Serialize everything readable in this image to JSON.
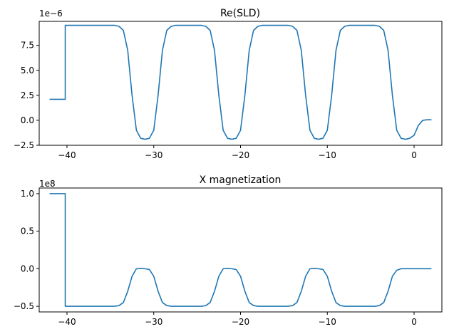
{
  "chart_data": [
    {
      "type": "line",
      "title": "Re(SLD)",
      "offset_text": "1e−6",
      "xlabel": "",
      "ylabel": "",
      "xlim": [
        -43.2,
        3.2
      ],
      "ylim": [
        -2.5,
        9.9
      ],
      "grid": false,
      "xticks": [
        -40,
        -30,
        -20,
        -10,
        0
      ],
      "xtick_labels": [
        "−40",
        "−30",
        "−20",
        "−10",
        "0"
      ],
      "yticks": [
        -2.5,
        0.0,
        2.5,
        5.0,
        7.5
      ],
      "ytick_labels": [
        "−2.5",
        "0.0",
        "2.5",
        "5.0",
        "7.5"
      ],
      "series": [
        {
          "color": "#1f77b4",
          "x": [
            -42,
            -40.2,
            -40.2,
            -34.5,
            -34,
            -33.5,
            -33,
            -32.5,
            -32,
            -31.5,
            -31,
            -30.5,
            -30,
            -29.5,
            -29,
            -28.5,
            -28,
            -27.5,
            -27,
            -24.5,
            -24,
            -23.5,
            -23,
            -22.5,
            -22,
            -21.5,
            -21,
            -20.5,
            -20,
            -19.5,
            -19,
            -18.5,
            -18,
            -17.5,
            -17,
            -14.5,
            -14,
            -13.5,
            -13,
            -12.5,
            -12,
            -11.5,
            -11,
            -10.5,
            -10,
            -9.5,
            -9,
            -8.5,
            -8,
            -7.5,
            -7,
            -4.5,
            -4,
            -3.5,
            -3,
            -2.5,
            -2,
            -1.5,
            -1,
            -0.5,
            0,
            0.5,
            1,
            1.5,
            2
          ],
          "y": [
            2.1,
            2.1,
            9.5,
            9.5,
            9.4,
            9.0,
            7.0,
            2.5,
            -1.0,
            -1.8,
            -1.9,
            -1.8,
            -1.0,
            2.5,
            7.0,
            9.0,
            9.4,
            9.5,
            9.5,
            9.5,
            9.4,
            9.0,
            7.0,
            2.5,
            -1.0,
            -1.8,
            -1.9,
            -1.8,
            -1.0,
            2.5,
            7.0,
            9.0,
            9.4,
            9.5,
            9.5,
            9.5,
            9.4,
            9.0,
            7.0,
            2.5,
            -1.0,
            -1.8,
            -1.9,
            -1.8,
            -1.0,
            2.5,
            7.0,
            9.0,
            9.4,
            9.5,
            9.5,
            9.5,
            9.4,
            9.0,
            7.0,
            2.5,
            -1.0,
            -1.8,
            -1.9,
            -1.8,
            -1.5,
            -0.5,
            0.0,
            0.05,
            0.05
          ]
        }
      ]
    },
    {
      "type": "line",
      "title": "X magnetization",
      "offset_text": "1e8",
      "xlabel": "",
      "ylabel": "",
      "xlim": [
        -43.2,
        3.2
      ],
      "ylim": [
        -0.575,
        1.075
      ],
      "grid": false,
      "xticks": [
        -40,
        -30,
        -20,
        -10,
        0
      ],
      "xtick_labels": [
        "−40",
        "−30",
        "−20",
        "−10",
        "0"
      ],
      "yticks": [
        -0.5,
        0.0,
        0.5,
        1.0
      ],
      "ytick_labels": [
        "−0.5",
        "0.0",
        "0.5",
        "1.0"
      ],
      "series": [
        {
          "color": "#1f77b4",
          "x": [
            -42,
            -40.2,
            -40.2,
            -34.5,
            -34,
            -33.5,
            -33,
            -32.5,
            -32,
            -31.5,
            -31,
            -30.5,
            -30,
            -29.5,
            -29,
            -28.5,
            -28,
            -27.5,
            -27,
            -24.5,
            -24,
            -23.5,
            -23,
            -22.5,
            -22,
            -21.5,
            -21,
            -20.5,
            -20,
            -19.5,
            -19,
            -18.5,
            -18,
            -17.5,
            -17,
            -14.5,
            -14,
            -13.5,
            -13,
            -12.5,
            -12,
            -11.5,
            -11,
            -10.5,
            -10,
            -9.5,
            -9,
            -8.5,
            -8,
            -7.5,
            -7,
            -4.5,
            -4,
            -3.5,
            -3,
            -2.5,
            -2,
            -1.5,
            -1,
            0,
            1,
            2
          ],
          "y": [
            1.0,
            1.0,
            -0.5,
            -0.5,
            -0.49,
            -0.45,
            -0.3,
            -0.1,
            0.0,
            0.005,
            0.0,
            -0.01,
            -0.1,
            -0.3,
            -0.45,
            -0.49,
            -0.5,
            -0.5,
            -0.5,
            -0.5,
            -0.49,
            -0.45,
            -0.3,
            -0.1,
            0.0,
            0.005,
            0.0,
            -0.01,
            -0.1,
            -0.3,
            -0.45,
            -0.49,
            -0.5,
            -0.5,
            -0.5,
            -0.5,
            -0.49,
            -0.45,
            -0.3,
            -0.1,
            0.0,
            0.005,
            0.0,
            -0.01,
            -0.1,
            -0.3,
            -0.45,
            -0.49,
            -0.5,
            -0.5,
            -0.5,
            -0.5,
            -0.49,
            -0.45,
            -0.3,
            -0.1,
            -0.02,
            0.0,
            0.0,
            0.0,
            0.0,
            0.0
          ]
        }
      ]
    }
  ]
}
